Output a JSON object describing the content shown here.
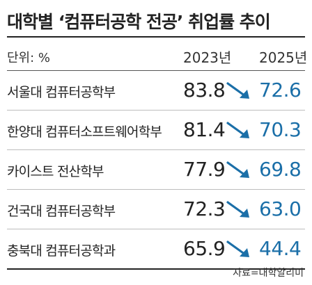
{
  "title": "대학별 ‘컴퓨터공학 전공’ 취업률 추이",
  "unit_label": "단위: %",
  "colors": {
    "accent": "#1b6fa8",
    "text": "#222222"
  },
  "chart_data": {
    "type": "table",
    "title": "대학별 ‘컴퓨터공학 전공’ 취업률 추이",
    "unit": "단위: %",
    "columns": [
      "2023년",
      "2025년"
    ],
    "rows": [
      {
        "label": "서울대 컴퓨터공학부",
        "values": [
          83.8,
          72.6
        ],
        "display": [
          "83.8",
          "72.6"
        ]
      },
      {
        "label": "한양대 컴퓨터소프트웨어학부",
        "values": [
          81.4,
          70.3
        ],
        "display": [
          "81.4",
          "70.3"
        ]
      },
      {
        "label": "카이스트 전산학부",
        "values": [
          77.9,
          69.8
        ],
        "display": [
          "77.9",
          "69.8"
        ]
      },
      {
        "label": "건국대 컴퓨터공학부",
        "values": [
          72.3,
          63.0
        ],
        "display": [
          "72.3",
          "63.0"
        ]
      },
      {
        "label": "충북대 컴퓨터공학과",
        "values": [
          65.9,
          44.4
        ],
        "display": [
          "65.9",
          "44.4"
        ]
      }
    ],
    "trend_icon": "down-right-arrow-icon"
  },
  "source": "자료=대학알리미"
}
